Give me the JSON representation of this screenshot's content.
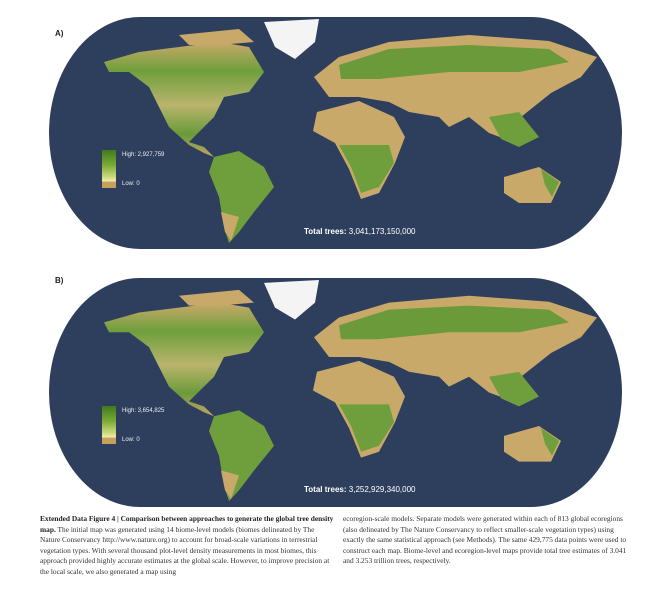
{
  "panels": [
    {
      "label": "A)",
      "legend": {
        "high": "High: 2,927,759",
        "low": "Low: 0"
      },
      "total": {
        "label": "Total trees:",
        "value": "3,041,173,150,000"
      }
    },
    {
      "label": "B)",
      "legend": {
        "high": "High: 3,654,825",
        "low": "Low: 0"
      },
      "total": {
        "label": "Total trees:",
        "value": "3,252,929,340,000"
      }
    }
  ],
  "colors": {
    "ocean": "#2e3f5e",
    "land_low": "#c9a96a",
    "land_high": "#5f9433",
    "ice": "#f4f4f4"
  },
  "caption": {
    "figure_label": "Extended Data Figure 4",
    "title": "Comparison between approaches to generate the global tree density map.",
    "col1": "The initial map was generated using 14 biome-level models (biomes delineated by The Nature Conservancy http://www.nature.org) to account for broad-scale variations in terrestrial vegetation types. With several thousand plot-level density measurements in most biomes, this approach provided highly accurate estimates at the global scale. However, to improve precision at the local scale, we also generated a map using",
    "col2": "ecoregion-scale models. Separate models were generated within each of 813 global ecoregions (also delineated by The Nature Conservancy to reflect smaller-scale vegetation types) using exactly the same statistical approach (see Methods). The same 429,775 data points were used to construct each map. Biome-level and ecoregion-level maps provide total tree estimates of 3.041 and 3.253 trillion trees, respectively."
  }
}
